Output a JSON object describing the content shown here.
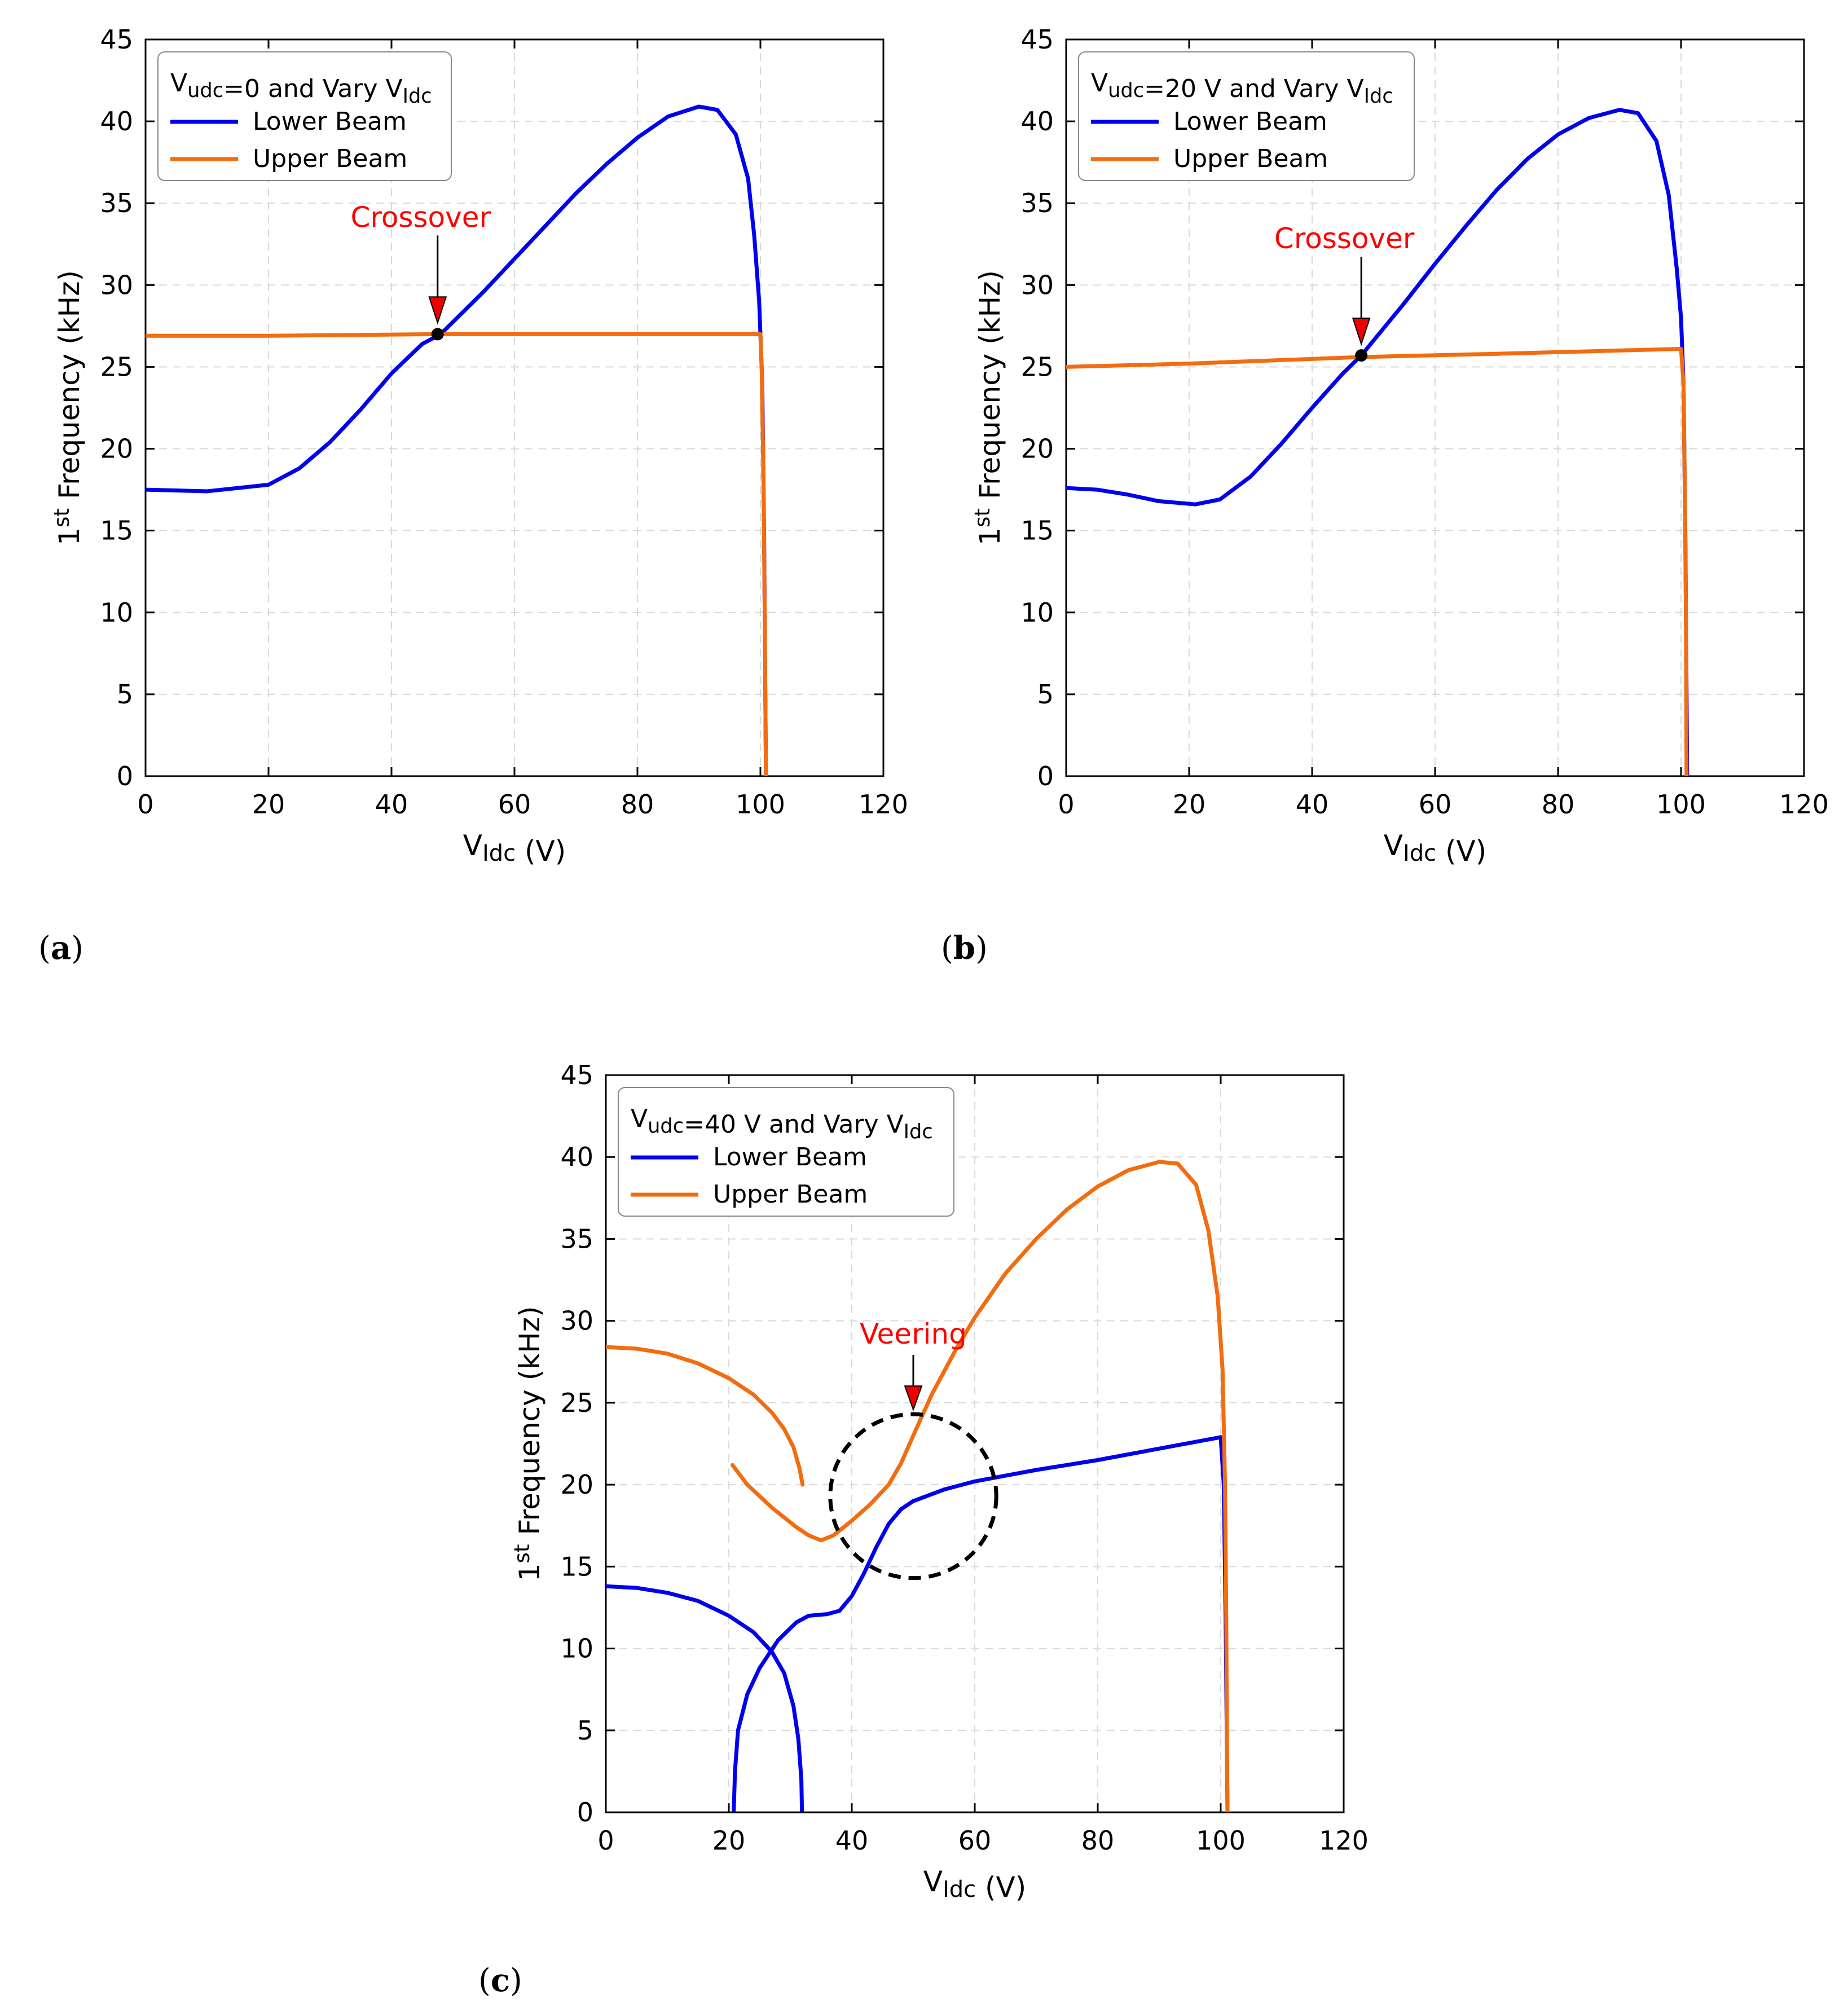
{
  "chart_data": [
    {
      "id": "a",
      "type": "line",
      "panel_label": "a",
      "xlabel": "V_Idc (V)",
      "ylabel": "1st Frequency (kHz)",
      "xlim": [
        0,
        120
      ],
      "ylim": [
        0,
        45
      ],
      "xticks": [
        0,
        20,
        40,
        60,
        80,
        100,
        120
      ],
      "yticks": [
        0,
        5,
        10,
        15,
        20,
        25,
        30,
        35,
        40,
        45
      ],
      "grid": true,
      "legend_title": "V_udc=0 and Vary V_Idc",
      "legend_position": "top-left",
      "series": [
        {
          "name": "Lower Beam",
          "color": "#0000ee",
          "points": [
            [
              0,
              17.5
            ],
            [
              10,
              17.4
            ],
            [
              20,
              17.8
            ],
            [
              25,
              18.8
            ],
            [
              30,
              20.4
            ],
            [
              35,
              22.4
            ],
            [
              40,
              24.6
            ],
            [
              45,
              26.4
            ],
            [
              48,
              27.0
            ],
            [
              55,
              29.6
            ],
            [
              60,
              31.6
            ],
            [
              65,
              33.6
            ],
            [
              70,
              35.6
            ],
            [
              75,
              37.4
            ],
            [
              80,
              39.0
            ],
            [
              85,
              40.3
            ],
            [
              90,
              40.9
            ],
            [
              93,
              40.7
            ],
            [
              96,
              39.2
            ],
            [
              98,
              36.5
            ],
            [
              99,
              33
            ],
            [
              99.8,
              29
            ],
            [
              100.3,
              24
            ],
            [
              100.6,
              15
            ],
            [
              100.8,
              5
            ],
            [
              100.9,
              0
            ]
          ]
        },
        {
          "name": "Upper Beam",
          "color": "#f26c10",
          "points": [
            [
              0,
              26.9
            ],
            [
              20,
              26.9
            ],
            [
              47.5,
              27.0
            ],
            [
              80,
              27.0
            ],
            [
              100,
              27.0
            ],
            [
              100.2,
              25
            ],
            [
              100.5,
              18
            ],
            [
              100.7,
              10
            ],
            [
              100.9,
              0
            ]
          ]
        }
      ],
      "annotations": [
        {
          "text": "Crossover",
          "x": 47.5,
          "y": 27.0,
          "kind": "crossover-point"
        }
      ]
    },
    {
      "id": "b",
      "type": "line",
      "panel_label": "b",
      "xlabel": "V_Idc (V)",
      "ylabel": "1st Frequency (kHz)",
      "xlim": [
        0,
        120
      ],
      "ylim": [
        0,
        45
      ],
      "xticks": [
        0,
        20,
        40,
        60,
        80,
        100,
        120
      ],
      "yticks": [
        0,
        5,
        10,
        15,
        20,
        25,
        30,
        35,
        40,
        45
      ],
      "grid": true,
      "legend_title": "V_udc=20 V and Vary V_Idc",
      "legend_position": "top-left",
      "series": [
        {
          "name": "Lower Beam",
          "color": "#0000ee",
          "points": [
            [
              0,
              17.6
            ],
            [
              5,
              17.5
            ],
            [
              10,
              17.2
            ],
            [
              15,
              16.8
            ],
            [
              21,
              16.6
            ],
            [
              25,
              16.9
            ],
            [
              30,
              18.3
            ],
            [
              35,
              20.3
            ],
            [
              40,
              22.5
            ],
            [
              45,
              24.6
            ],
            [
              48,
              25.7
            ],
            [
              55,
              28.9
            ],
            [
              60,
              31.3
            ],
            [
              65,
              33.6
            ],
            [
              70,
              35.8
            ],
            [
              75,
              37.7
            ],
            [
              80,
              39.2
            ],
            [
              85,
              40.2
            ],
            [
              90,
              40.7
            ],
            [
              93,
              40.5
            ],
            [
              96,
              38.8
            ],
            [
              98,
              35.5
            ],
            [
              99.3,
              31
            ],
            [
              100,
              28
            ],
            [
              100.4,
              24
            ],
            [
              100.7,
              15
            ],
            [
              100.9,
              5
            ],
            [
              101,
              0
            ]
          ]
        },
        {
          "name": "Upper Beam",
          "color": "#f26c10",
          "points": [
            [
              0,
              25.0
            ],
            [
              20,
              25.2
            ],
            [
              48,
              25.6
            ],
            [
              70,
              25.8
            ],
            [
              100,
              26.1
            ],
            [
              100.4,
              24
            ],
            [
              100.6,
              18
            ],
            [
              100.8,
              10
            ],
            [
              100.9,
              0
            ]
          ]
        }
      ],
      "annotations": [
        {
          "text": "Crossover",
          "x": 48,
          "y": 25.7,
          "kind": "crossover-point"
        }
      ]
    },
    {
      "id": "c",
      "type": "line",
      "panel_label": "c",
      "xlabel": "V_Idc (V)",
      "ylabel": "1st Frequency (kHz)",
      "xlim": [
        0,
        120
      ],
      "ylim": [
        0,
        45
      ],
      "xticks": [
        0,
        20,
        40,
        60,
        80,
        100,
        120
      ],
      "yticks": [
        0,
        5,
        10,
        15,
        20,
        25,
        30,
        35,
        40,
        45
      ],
      "grid": true,
      "legend_title": "V_udc=40 V and Vary V_Idc",
      "legend_position": "top-left",
      "series": [
        {
          "name": "Lower Beam",
          "color": "#0000ee",
          "segments": [
            [
              [
                0,
                13.8
              ],
              [
                5,
                13.7
              ],
              [
                10,
                13.4
              ],
              [
                15,
                12.9
              ],
              [
                20,
                12.0
              ],
              [
                24,
                11.0
              ],
              [
                27,
                9.8
              ],
              [
                29,
                8.5
              ],
              [
                30.5,
                6.5
              ],
              [
                31.3,
                4.5
              ],
              [
                31.8,
                2
              ],
              [
                31.9,
                0
              ]
            ],
            [
              [
                20.8,
                0
              ],
              [
                21,
                2.5
              ],
              [
                21.5,
                5
              ],
              [
                23,
                7.2
              ],
              [
                25,
                8.8
              ],
              [
                28,
                10.5
              ],
              [
                31,
                11.6
              ],
              [
                33,
                12.0
              ],
              [
                36,
                12.1
              ],
              [
                38,
                12.3
              ],
              [
                40,
                13.2
              ],
              [
                42,
                14.6
              ],
              [
                44,
                16.2
              ],
              [
                46,
                17.6
              ],
              [
                48,
                18.5
              ],
              [
                50,
                19.0
              ],
              [
                55,
                19.7
              ],
              [
                60,
                20.2
              ],
              [
                70,
                20.9
              ],
              [
                80,
                21.5
              ],
              [
                90,
                22.2
              ],
              [
                100,
                22.9
              ],
              [
                100.5,
                20
              ],
              [
                100.8,
                12
              ],
              [
                101,
                4
              ],
              [
                101.1,
                0
              ]
            ]
          ]
        },
        {
          "name": "Upper Beam",
          "color": "#f26c10",
          "segments": [
            [
              [
                0,
                28.4
              ],
              [
                5,
                28.3
              ],
              [
                10,
                28.0
              ],
              [
                15,
                27.4
              ],
              [
                20,
                26.5
              ],
              [
                24,
                25.5
              ],
              [
                27,
                24.4
              ],
              [
                29,
                23.4
              ],
              [
                30.5,
                22.3
              ],
              [
                31.5,
                21.0
              ],
              [
                32,
                20.0
              ]
            ],
            [
              [
                20.6,
                21.2
              ],
              [
                23,
                20.0
              ],
              [
                27,
                18.6
              ],
              [
                31,
                17.4
              ],
              [
                33,
                16.9
              ],
              [
                35,
                16.6
              ],
              [
                37,
                16.9
              ],
              [
                40,
                17.8
              ],
              [
                43,
                18.8
              ],
              [
                46,
                20.0
              ],
              [
                48,
                21.3
              ],
              [
                50,
                23.0
              ],
              [
                53,
                25.5
              ],
              [
                57,
                28.3
              ],
              [
                60,
                30.2
              ],
              [
                65,
                32.9
              ],
              [
                70,
                35.0
              ],
              [
                75,
                36.8
              ],
              [
                80,
                38.2
              ],
              [
                85,
                39.2
              ],
              [
                90,
                39.7
              ],
              [
                93,
                39.6
              ],
              [
                96,
                38.3
              ],
              [
                98,
                35.5
              ],
              [
                99.5,
                31.5
              ],
              [
                100.3,
                27
              ],
              [
                100.7,
                20
              ],
              [
                100.9,
                12
              ],
              [
                101,
                5
              ],
              [
                101.1,
                0
              ]
            ]
          ]
        }
      ],
      "annotations": [
        {
          "text": "Veering",
          "x": 50,
          "y": 19.3,
          "radius_x": 13.5,
          "radius_y": 5,
          "kind": "veering-circle"
        }
      ]
    }
  ],
  "panels": [
    {
      "label": "a"
    },
    {
      "label": "b"
    },
    {
      "label": "c"
    }
  ]
}
